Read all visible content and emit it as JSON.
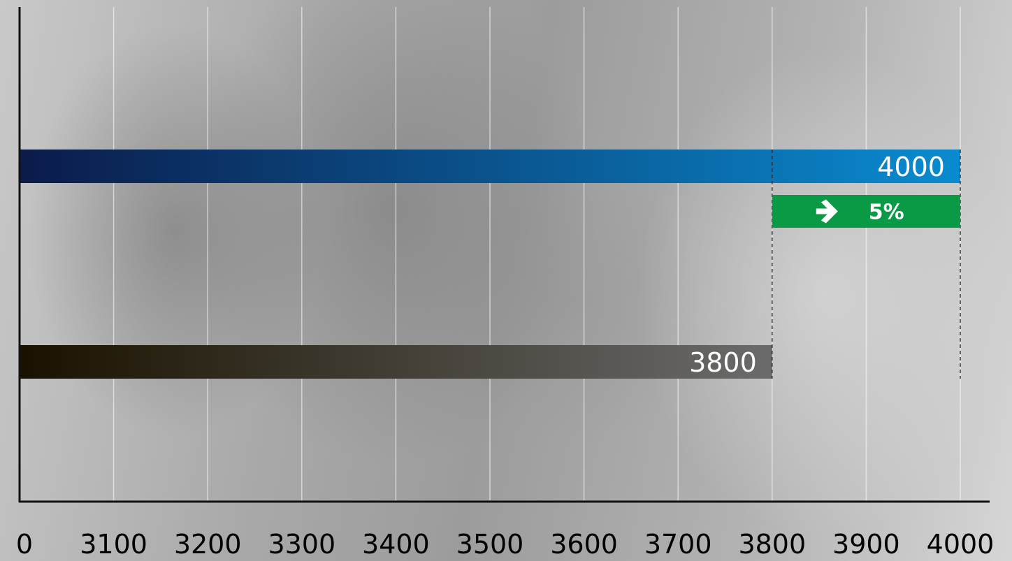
{
  "chart_data": {
    "type": "bar",
    "orientation": "horizontal",
    "x_ticks": [
      "0",
      "3100",
      "3200",
      "3300",
      "3400",
      "3500",
      "3600",
      "3700",
      "3800",
      "3900",
      "4000"
    ],
    "x_tick_values": [
      3000,
      3100,
      3200,
      3300,
      3400,
      3500,
      3600,
      3700,
      3800,
      3900,
      4000
    ],
    "xlim": [
      3000,
      4000
    ],
    "axis_break": "x-axis starts at 0 but the first interval spans 0 to 3100; scale is linear from 3000 to 4000",
    "grid": "vertical",
    "bars": [
      {
        "value": 4000,
        "label": "4000",
        "color_start": "#0b1b4a",
        "color_end": "#0a8bd0"
      },
      {
        "value": 3800,
        "label": "3800",
        "color_start": "#1a1200",
        "color_end": "#6b6b6b"
      }
    ],
    "annotation": {
      "type": "increase",
      "text": "5%",
      "icon": "arrow-right-icon",
      "color": "#0a9a45",
      "from": 3800,
      "to": 4000
    }
  }
}
